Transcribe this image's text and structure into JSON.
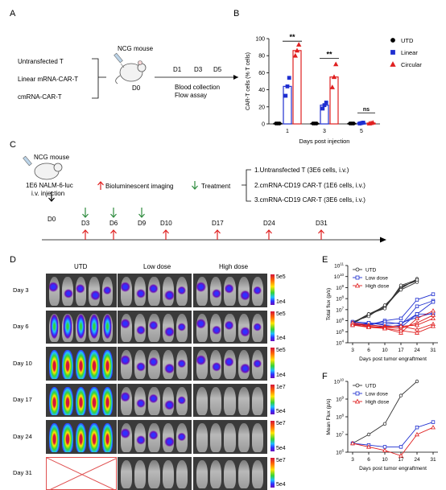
{
  "panels": {
    "A": "A",
    "B": "B",
    "C": "C",
    "D": "D",
    "E": "E",
    "F": "F"
  },
  "panel_a": {
    "groups": [
      "Untransfected T",
      "Linear mRNA-CAR-T",
      "cmRNA-CAR-T"
    ],
    "mouse_label": "NCG mouse",
    "day0": "D0",
    "days": [
      "D1",
      "D3",
      "D5"
    ],
    "assay_line1": "Blood collection",
    "assay_line2": "Flow assay"
  },
  "panel_c": {
    "mouse_label": "NCG mouse",
    "injection_line1": "1E6 NALM-6-luc",
    "injection_line2": "i.v. injection",
    "imaging_legend": "Bioluminescent imaging",
    "treatment_legend": "Treatment",
    "groups": [
      "1.Untransfected T (3E6 cells, i.v.)",
      "2.cmRNA-CD19 CAR-T (1E6 cells, i.v.)",
      "3.cmRNA-CD19 CAR-T (3E6 cells, i.v.)"
    ],
    "timeline_days": [
      "D0",
      "D3",
      "D6",
      "D9",
      "D10",
      "D17",
      "D24",
      "D31"
    ],
    "colors": {
      "imaging": "#e02020",
      "treatment": "#2e8b3e"
    }
  },
  "panel_d": {
    "columns": [
      "UTD",
      "Low dose",
      "High dose"
    ],
    "rows": [
      {
        "day": "Day 3",
        "scale_max": "5e5",
        "scale_min": "1e4"
      },
      {
        "day": "Day 6",
        "scale_max": "5e5",
        "scale_min": "1e4"
      },
      {
        "day": "Day 10",
        "scale_max": "5e5",
        "scale_min": "1e4"
      },
      {
        "day": "Day 17",
        "scale_max": "1e7",
        "scale_min": "5e4"
      },
      {
        "day": "Day 24",
        "scale_max": "5e7",
        "scale_min": "5e4"
      },
      {
        "day": "Day 31",
        "scale_max": "5e7",
        "scale_min": "5e4"
      }
    ]
  },
  "chart_data": [
    {
      "panel": "B",
      "type": "bar",
      "ylabel": "CAR-T cells (% T cells)",
      "xlabel": "Days post injection",
      "categories": [
        "1",
        "3",
        "5"
      ],
      "ylim": [
        0,
        100
      ],
      "yticks": [
        "0",
        "20",
        "40",
        "60",
        "80",
        "100"
      ],
      "series": [
        {
          "name": "UTD",
          "color": "#000000",
          "marker": "circle",
          "values": [
            0.5,
            0.5,
            0.5
          ],
          "points": [
            [
              0.5,
              0.5,
              0.5
            ],
            [
              0.5,
              0.5,
              0.5
            ],
            [
              0.5,
              0.5,
              0.5
            ]
          ]
        },
        {
          "name": "Linear",
          "color": "#1f2fd0",
          "marker": "square",
          "values": [
            44,
            22,
            1
          ],
          "points": [
            [
              33,
              44,
              54
            ],
            [
              18,
              22,
              25
            ],
            [
              0.5,
              1,
              1.5
            ]
          ]
        },
        {
          "name": "Circular",
          "color": "#e02020",
          "marker": "triangle",
          "values": [
            86,
            55,
            1
          ],
          "points": [
            [
              80,
              86,
              93
            ],
            [
              43,
              55,
              70
            ],
            [
              0.5,
              1,
              1.5
            ]
          ]
        }
      ],
      "annotations": [
        "**",
        "**",
        "ns"
      ]
    },
    {
      "panel": "E",
      "type": "line",
      "ylabel": "Total flux (p/s)",
      "xlabel": "Days post tumor engraftment",
      "x": [
        "3",
        "6",
        "10",
        "17",
        "24",
        "31"
      ],
      "ylim_log10": [
        4,
        11
      ],
      "ytick_exponents": [
        "4",
        "5",
        "6",
        "7",
        "8",
        "9",
        "10",
        "11"
      ],
      "series": [
        {
          "name": "UTD",
          "color": "#333333",
          "marker": "circle",
          "lines": [
            [
              5.8,
              6.6,
              7.3,
              9.0,
              9.7,
              null
            ],
            [
              5.8,
              6.5,
              7.2,
              8.9,
              9.8,
              null
            ],
            [
              5.7,
              6.6,
              7.2,
              9.1,
              9.6,
              null
            ],
            [
              5.9,
              6.4,
              7.4,
              8.8,
              9.5,
              null
            ],
            [
              5.8,
              6.6,
              7.1,
              9.2,
              9.7,
              null
            ]
          ]
        },
        {
          "name": "Low dose",
          "color": "#1f2fd0",
          "marker": "square",
          "lines": [
            [
              5.7,
              5.6,
              6.0,
              6.2,
              7.9,
              8.4
            ],
            [
              5.6,
              5.7,
              5.4,
              5.6,
              7.3,
              7.8
            ],
            [
              5.9,
              5.8,
              5.6,
              5.4,
              6.6,
              7.7
            ],
            [
              5.8,
              5.7,
              5.9,
              5.7,
              6.6,
              6.6
            ],
            [
              5.6,
              5.8,
              5.7,
              5.8,
              6.3,
              6.7
            ]
          ]
        },
        {
          "name": "High dose",
          "color": "#e02020",
          "marker": "triangle",
          "lines": [
            [
              5.6,
              5.5,
              5.3,
              4.9,
              6.2,
              6.9
            ],
            [
              5.7,
              5.4,
              5.4,
              5.3,
              5.8,
              6.5
            ],
            [
              5.8,
              5.6,
              5.5,
              5.5,
              5.6,
              6.2
            ],
            [
              5.8,
              5.5,
              5.4,
              5.5,
              5.2,
              5.7
            ],
            [
              5.6,
              5.4,
              5.3,
              5.1,
              4.9,
              5.5
            ]
          ]
        }
      ]
    },
    {
      "panel": "F",
      "type": "line",
      "ylabel": "Mean Flux (p/s)",
      "xlabel": "Days post tumor engraftment",
      "x": [
        "3",
        "6",
        "10",
        "17",
        "24",
        "31"
      ],
      "ylim_log10": [
        6,
        10
      ],
      "ytick_exponents": [
        "6",
        "7",
        "8",
        "9",
        "10"
      ],
      "series": [
        {
          "name": "UTD",
          "color": "#333333",
          "marker": "circle",
          "values": [
            6.5,
            7.0,
            7.6,
            9.2,
            10.0,
            null
          ]
        },
        {
          "name": "Low dose",
          "color": "#1f2fd0",
          "marker": "square",
          "values": [
            6.5,
            6.4,
            6.3,
            6.3,
            7.4,
            7.7
          ]
        },
        {
          "name": "High dose",
          "color": "#e02020",
          "marker": "triangle",
          "values": [
            6.5,
            6.3,
            6.1,
            5.8,
            7.0,
            7.4
          ]
        }
      ]
    }
  ]
}
